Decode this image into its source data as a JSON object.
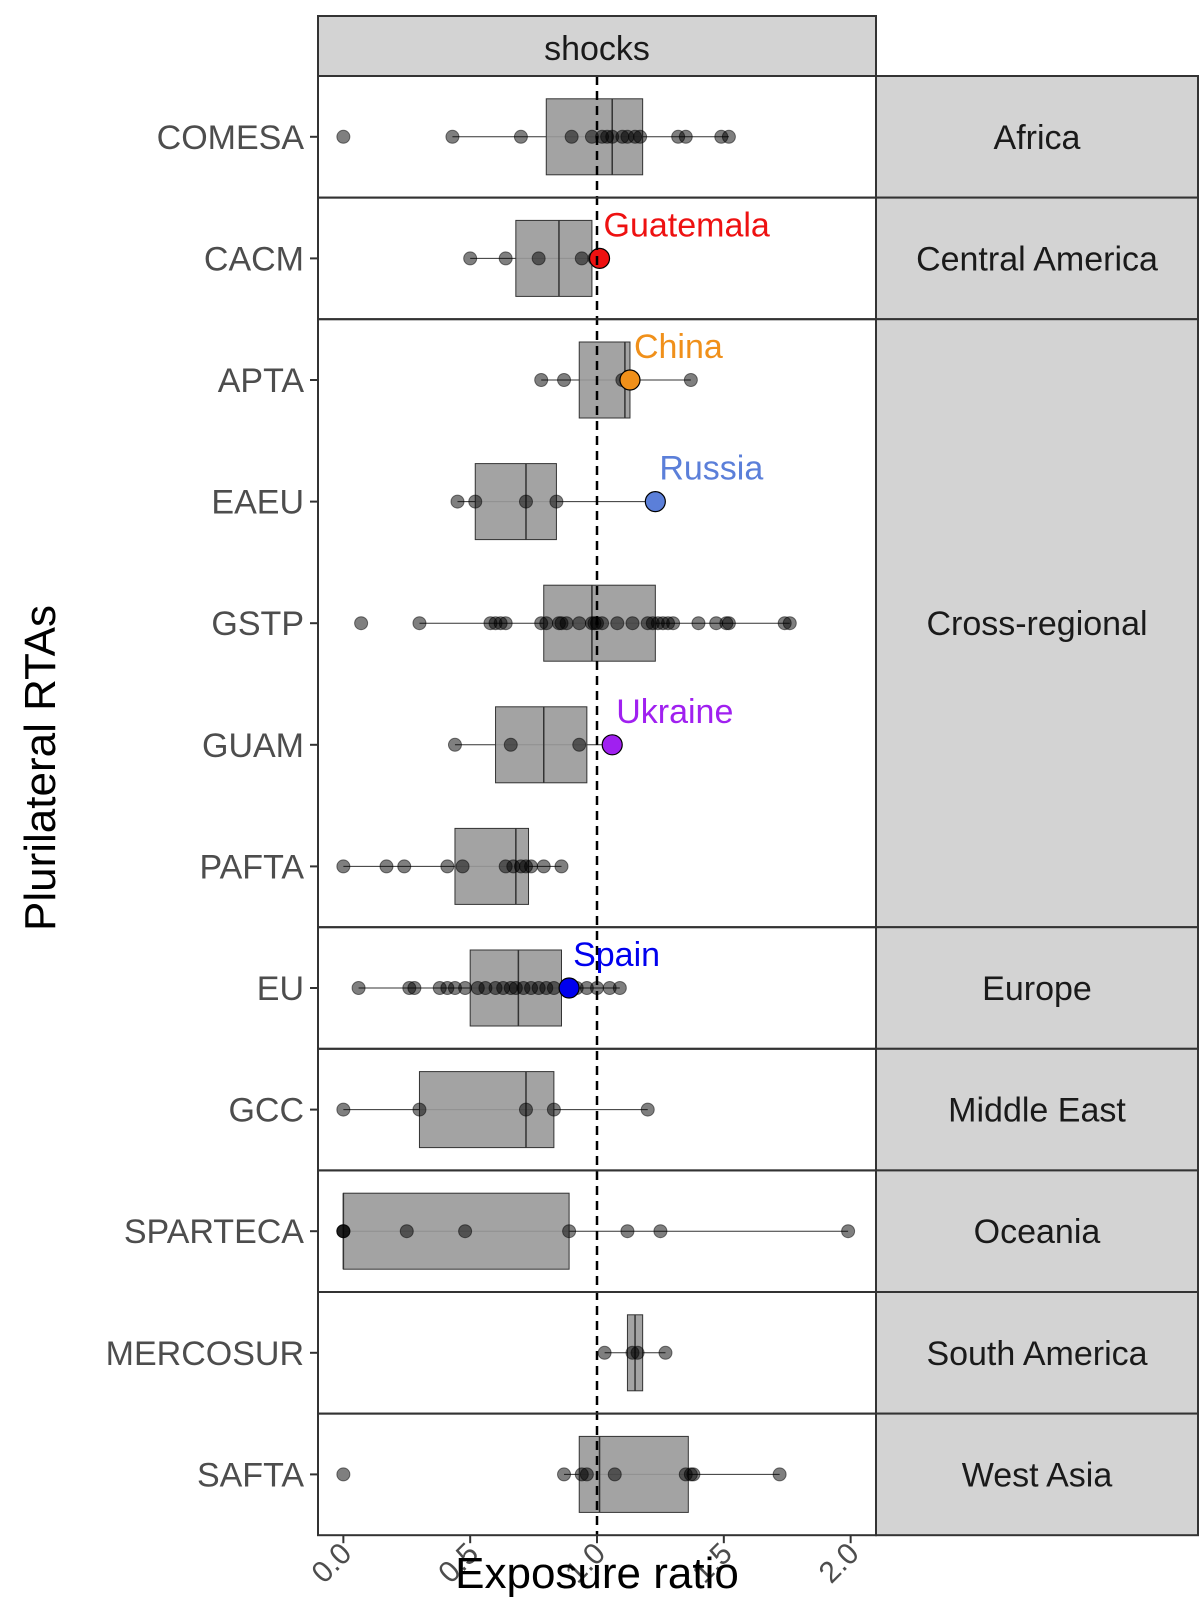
{
  "chart_data": {
    "type": "box",
    "facet_label": "shocks",
    "xlabel": "Exposure ratio",
    "ylabel": "Plurilateral RTAs",
    "xlim": [
      -0.1,
      2.1
    ],
    "x_ticks": [
      {
        "value": 0.0,
        "label": "0.0"
      },
      {
        "value": 0.5,
        "label": "0.5"
      },
      {
        "value": 1.0,
        "label": "1.0"
      },
      {
        "value": 1.5,
        "label": "1.5"
      },
      {
        "value": 2.0,
        "label": "2.0"
      }
    ],
    "reference_line": {
      "x": 1.0,
      "style": "dashed"
    },
    "box_fill": "#999999",
    "point_color": "#000000",
    "panels": [
      {
        "region": "Africa",
        "rtas": [
          {
            "name": "COMESA",
            "box": {
              "whisker_low": 0.43,
              "q1": 0.8,
              "median": 1.06,
              "q3": 1.18,
              "whisker_high": 1.52
            },
            "points": [
              0.0,
              0.43,
              0.7,
              0.9,
              0.98,
              1.02,
              1.04,
              1.06,
              1.1,
              1.12,
              1.15,
              1.17,
              1.32,
              1.35,
              1.49,
              1.52
            ],
            "highlight": null
          }
        ]
      },
      {
        "region": "Central America",
        "rtas": [
          {
            "name": "CACM",
            "box": {
              "whisker_low": 0.5,
              "q1": 0.68,
              "median": 0.85,
              "q3": 0.98,
              "whisker_high": 1.02
            },
            "points": [
              0.5,
              0.64,
              0.77,
              0.94,
              0.99
            ],
            "highlight": {
              "label": "Guatemala",
              "value": 1.01,
              "color": "#ee1111"
            }
          }
        ]
      },
      {
        "region": "Cross-regional",
        "rtas": [
          {
            "name": "APTA",
            "box": {
              "whisker_low": 0.78,
              "q1": 0.93,
              "median": 1.11,
              "q3": 1.13,
              "whisker_high": 1.37
            },
            "points": [
              0.78,
              0.87,
              1.1,
              1.37
            ],
            "highlight": {
              "label": "China",
              "value": 1.13,
              "color": "#f0901a"
            }
          },
          {
            "name": "EAEU",
            "box": {
              "whisker_low": 0.45,
              "q1": 0.52,
              "median": 0.72,
              "q3": 0.84,
              "whisker_high": 1.23
            },
            "points": [
              0.45,
              0.52,
              0.72,
              0.84
            ],
            "highlight": {
              "label": "Russia",
              "value": 1.23,
              "color": "#5b7fd9"
            }
          },
          {
            "name": "GSTP",
            "box": {
              "whisker_low": 0.3,
              "q1": 0.79,
              "median": 0.98,
              "q3": 1.23,
              "whisker_high": 1.76
            },
            "points": [
              0.07,
              0.3,
              0.58,
              0.6,
              0.62,
              0.64,
              0.78,
              0.8,
              0.85,
              0.86,
              0.88,
              0.93,
              0.98,
              0.99,
              1.0,
              1.02,
              1.08,
              1.14,
              1.2,
              1.22,
              1.24,
              1.26,
              1.28,
              1.3,
              1.4,
              1.47,
              1.51,
              1.52,
              1.74,
              1.76
            ],
            "highlight": null
          },
          {
            "name": "GUAM",
            "box": {
              "whisker_low": 0.44,
              "q1": 0.6,
              "median": 0.79,
              "q3": 0.96,
              "whisker_high": 1.06
            },
            "points": [
              0.44,
              0.66,
              0.93
            ],
            "highlight": {
              "label": "Ukraine",
              "value": 1.06,
              "color": "#a020f0"
            }
          },
          {
            "name": "PAFTA",
            "box": {
              "whisker_low": 0.0,
              "q1": 0.44,
              "median": 0.68,
              "q3": 0.73,
              "whisker_high": 0.86
            },
            "points": [
              0.0,
              0.17,
              0.24,
              0.41,
              0.47,
              0.64,
              0.67,
              0.7,
              0.72,
              0.74,
              0.79,
              0.86
            ],
            "highlight": null
          }
        ]
      },
      {
        "region": "Europe",
        "rtas": [
          {
            "name": "EU",
            "box": {
              "whisker_low": 0.06,
              "q1": 0.5,
              "median": 0.69,
              "q3": 0.86,
              "whisker_high": 1.09
            },
            "points": [
              0.06,
              0.26,
              0.28,
              0.38,
              0.41,
              0.44,
              0.48,
              0.53,
              0.56,
              0.6,
              0.63,
              0.66,
              0.68,
              0.71,
              0.74,
              0.77,
              0.8,
              0.83,
              0.88,
              0.92,
              0.96,
              1.0,
              1.05,
              1.09
            ],
            "highlight": {
              "label": "Spain",
              "value": 0.89,
              "color": "#0000ee"
            }
          }
        ]
      },
      {
        "region": "Middle East",
        "rtas": [
          {
            "name": "GCC",
            "box": {
              "whisker_low": 0.0,
              "q1": 0.3,
              "median": 0.72,
              "q3": 0.83,
              "whisker_high": 1.2
            },
            "points": [
              0.0,
              0.3,
              0.72,
              0.83,
              1.2
            ],
            "highlight": null
          }
        ]
      },
      {
        "region": "Oceania",
        "rtas": [
          {
            "name": "SPARTECA",
            "box": {
              "whisker_low": 0.0,
              "q1": 0.0,
              "median": 0.0,
              "q3": 0.89,
              "whisker_high": 1.99
            },
            "points": [
              0.0,
              0.0,
              0.0,
              0.25,
              0.48,
              0.89,
              1.12,
              1.25,
              1.99
            ],
            "highlight": null
          }
        ]
      },
      {
        "region": "South America",
        "rtas": [
          {
            "name": "MERCOSUR",
            "box": {
              "whisker_low": 1.03,
              "q1": 1.12,
              "median": 1.15,
              "q3": 1.18,
              "whisker_high": 1.27
            },
            "points": [
              1.03,
              1.14,
              1.16,
              1.27
            ],
            "highlight": null
          }
        ]
      },
      {
        "region": "West Asia",
        "rtas": [
          {
            "name": "SAFTA",
            "box": {
              "whisker_low": 0.87,
              "q1": 0.93,
              "median": 1.01,
              "q3": 1.36,
              "whisker_high": 1.72
            },
            "points": [
              0.0,
              0.87,
              0.94,
              0.96,
              1.07,
              1.35,
              1.37,
              1.38,
              1.72
            ],
            "highlight": null
          }
        ]
      }
    ]
  }
}
